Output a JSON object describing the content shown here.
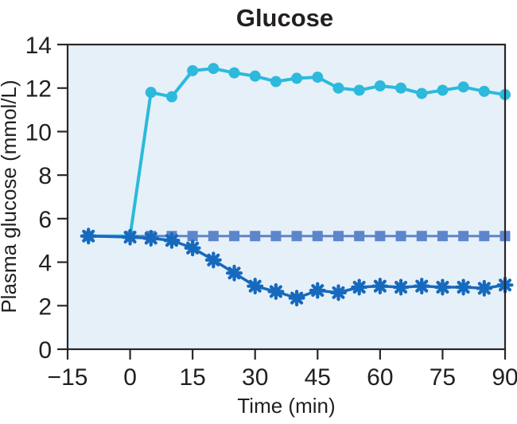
{
  "chart_data": {
    "type": "line",
    "title": "Glucose",
    "xlabel": "Time (min)",
    "ylabel": "Plasma glucose (mmol/L)",
    "xlim": [
      -15,
      90
    ],
    "ylim": [
      0,
      14
    ],
    "x_ticks": [
      -15,
      0,
      15,
      30,
      45,
      60,
      75,
      90
    ],
    "x_tick_labels": [
      "−15",
      "0",
      "15",
      "30",
      "45",
      "60",
      "75",
      "90"
    ],
    "y_ticks": [
      0,
      2,
      4,
      6,
      8,
      10,
      12,
      14
    ],
    "grid": false,
    "legend": "none",
    "x": [
      -10,
      0,
      5,
      10,
      15,
      20,
      25,
      30,
      35,
      40,
      45,
      50,
      55,
      60,
      65,
      70,
      75,
      80,
      85,
      90
    ],
    "series": [
      {
        "name": "series-squares",
        "marker": "square",
        "color": "#5D85CB",
        "line_width": 3,
        "values": [
          5.2,
          5.2,
          5.2,
          5.2,
          5.2,
          5.2,
          5.2,
          5.2,
          5.2,
          5.2,
          5.2,
          5.2,
          5.2,
          5.2,
          5.2,
          5.2,
          5.2,
          5.2,
          5.2,
          5.2
        ]
      },
      {
        "name": "series-circles",
        "marker": "circle",
        "color": "#2CB9DC",
        "line_width": 4,
        "values": [
          5.2,
          5.2,
          11.8,
          11.6,
          12.8,
          12.9,
          12.7,
          12.55,
          12.3,
          12.45,
          12.5,
          12.0,
          11.9,
          12.1,
          12.0,
          11.75,
          11.9,
          12.05,
          11.85,
          11.7
        ]
      },
      {
        "name": "series-asterisks",
        "marker": "asterisk",
        "color": "#1669BD",
        "line_width": 3.5,
        "values": [
          5.2,
          5.15,
          5.1,
          5.0,
          4.65,
          4.1,
          3.5,
          2.9,
          2.65,
          2.35,
          2.7,
          2.6,
          2.85,
          2.9,
          2.85,
          2.9,
          2.85,
          2.85,
          2.8,
          2.95
        ]
      }
    ],
    "colors": {
      "plot_bg": "#E5F0F8",
      "frame": "#2B2728",
      "text": "#231F20"
    }
  }
}
